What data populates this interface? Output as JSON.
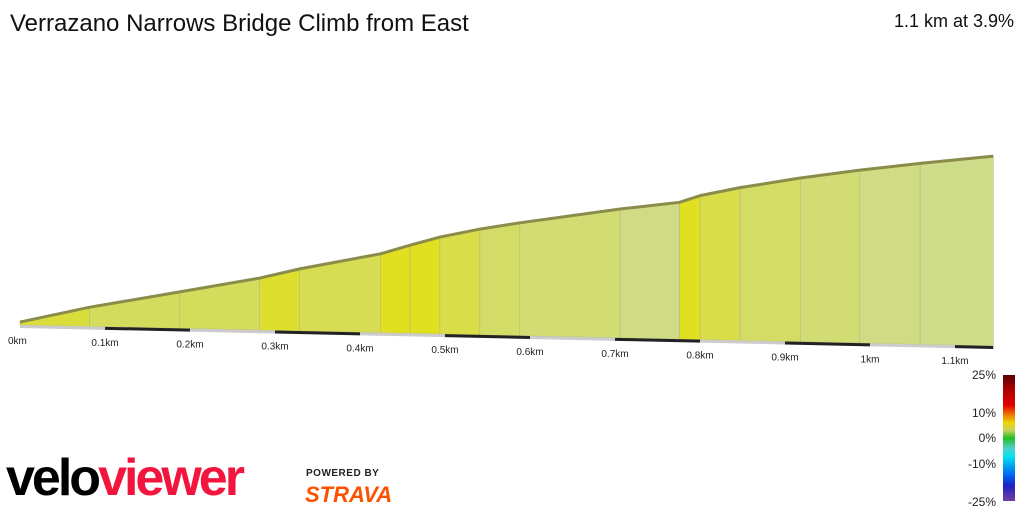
{
  "header": {
    "title": "Verrazano Narrows Bridge Climb from East",
    "summary": "1.1 km at 3.9%"
  },
  "chart_data": {
    "type": "area",
    "title": "Verrazano Narrows Bridge Climb from East",
    "xlabel": "",
    "ylabel": "",
    "x_unit": "km",
    "distance_km": [
      0,
      0.082,
      0.188,
      0.282,
      0.329,
      0.424,
      0.459,
      0.494,
      0.541,
      0.588,
      0.706,
      0.776,
      0.8,
      0.847,
      0.918,
      0.988,
      1.059,
      1.145
    ],
    "elevation_m": [
      0.7,
      4.6,
      8.7,
      12.4,
      14.8,
      18.8,
      21,
      23.1,
      25.2,
      26.9,
      30.7,
      32.6,
      34.3,
      36.4,
      39,
      41.2,
      43.1,
      45.2
    ],
    "x_ticks": [
      "0km",
      "0.1km",
      "0.2km",
      "0.3km",
      "0.4km",
      "0.5km",
      "0.6km",
      "0.7km",
      "0.8km",
      "0.9km",
      "1km",
      "1.1km"
    ],
    "xlim": [
      0,
      1.145
    ],
    "colors": {
      "edge": "#8a8c4a",
      "low_grade": "#cfdc8a",
      "mid_grade": "#d4dc5a",
      "high_grade": "#e0e020"
    }
  },
  "legend": {
    "labels": [
      "25%",
      "10%",
      "0%",
      "-10%",
      "-25%"
    ]
  },
  "branding": {
    "logo_a": "velo",
    "logo_b": "viewer",
    "powered": "POWERED BY",
    "strava": "STRAVA"
  }
}
